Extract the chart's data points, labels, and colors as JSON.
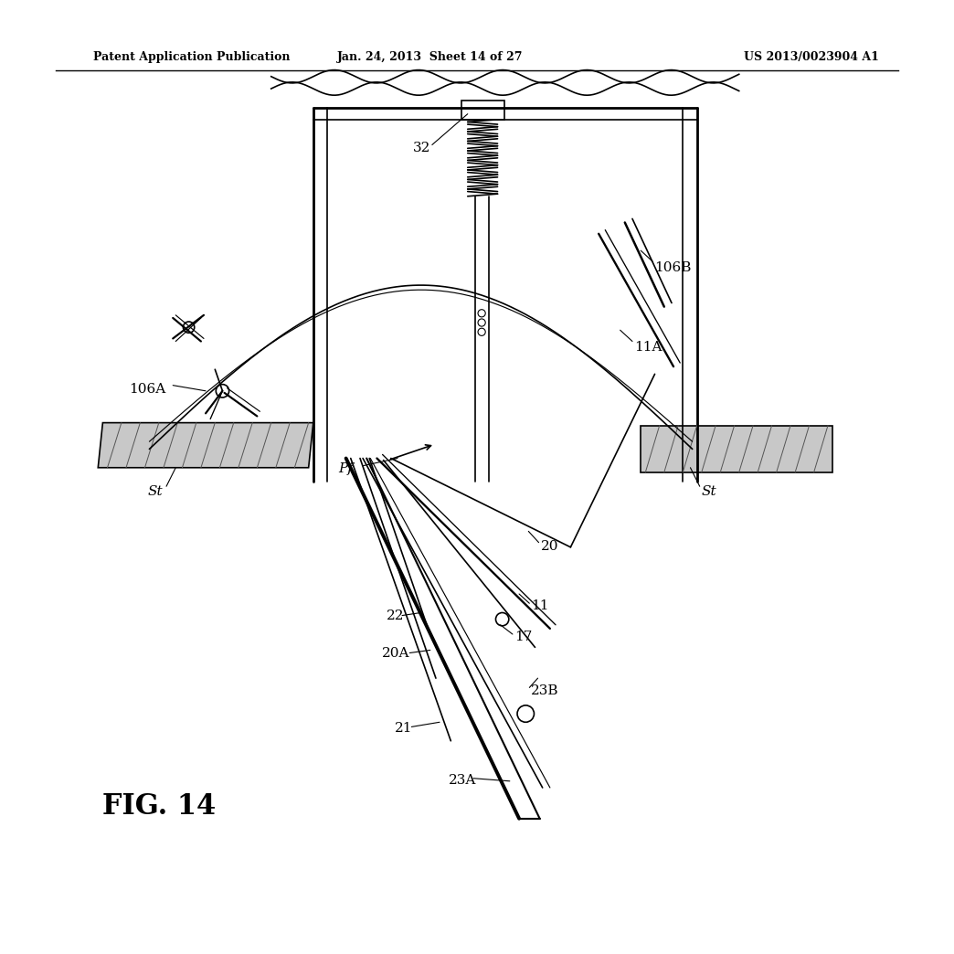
{
  "title_left": "Patent Application Publication",
  "title_mid": "Jan. 24, 2013  Sheet 14 of 27",
  "title_right": "US 2013/0023904 A1",
  "fig_label": "FIG. 14",
  "bg_color": "#ffffff",
  "line_color": "#000000",
  "hatch_color": "#888888"
}
